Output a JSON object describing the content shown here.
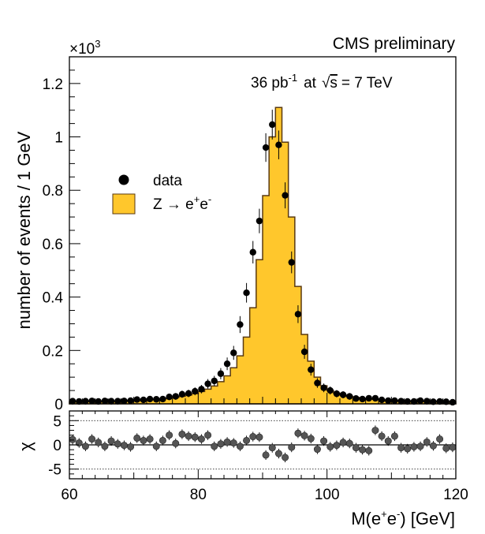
{
  "chart_data": [
    {
      "id": "main",
      "type": "histogram",
      "title": "CMS preliminary",
      "annotation": {
        "lumi": "36 pb",
        "lumi_sup": "-1",
        "at": "at",
        "sqrt": "√",
        "s": "s",
        "energy": "= 7 TeV"
      },
      "scale_label": {
        "prefix": "×10",
        "exp": "3"
      },
      "ylabel": "number of events / 1 GeV",
      "xlim": [
        60,
        120
      ],
      "ylim": [
        0,
        1.3
      ],
      "yticks": [
        "0",
        "0.2",
        "0.4",
        "0.6",
        "0.8",
        "1",
        "1.2"
      ],
      "legend": {
        "position": "upper-left",
        "entries": [
          {
            "label": "data",
            "marker": "dot"
          },
          {
            "label": "Z → e",
            "sup1": "+",
            "rest": "e",
            "sup2": "-",
            "marker": "box"
          }
        ]
      },
      "bin_edges_start": 60,
      "bin_width": 1,
      "mc_values": [
        0.008,
        0.008,
        0.008,
        0.009,
        0.009,
        0.009,
        0.01,
        0.01,
        0.011,
        0.012,
        0.013,
        0.014,
        0.016,
        0.017,
        0.019,
        0.021,
        0.024,
        0.028,
        0.033,
        0.038,
        0.046,
        0.055,
        0.067,
        0.083,
        0.105,
        0.135,
        0.18,
        0.25,
        0.36,
        0.54,
        0.78,
        1.0,
        1.11,
        0.98,
        0.7,
        0.44,
        0.26,
        0.16,
        0.1,
        0.068,
        0.05,
        0.04,
        0.033,
        0.028,
        0.024,
        0.021,
        0.019,
        0.017,
        0.015,
        0.014,
        0.013,
        0.012,
        0.011,
        0.01,
        0.01,
        0.009,
        0.009,
        0.009,
        0.008,
        0.008
      ],
      "data_values": [
        0.01,
        0.009,
        0.01,
        0.011,
        0.009,
        0.011,
        0.01,
        0.01,
        0.011,
        0.012,
        0.016,
        0.015,
        0.018,
        0.017,
        0.018,
        0.026,
        0.028,
        0.036,
        0.039,
        0.047,
        0.055,
        0.075,
        0.086,
        0.113,
        0.15,
        0.191,
        0.297,
        0.416,
        0.568,
        0.685,
        0.96,
        1.046,
        0.97,
        0.781,
        0.53,
        0.336,
        0.195,
        0.128,
        0.078,
        0.06,
        0.05,
        0.038,
        0.034,
        0.028,
        0.02,
        0.018,
        0.021,
        0.021,
        0.015,
        0.012,
        0.012,
        0.01,
        0.009,
        0.009,
        0.012,
        0.01,
        0.008,
        0.009,
        0.008,
        0.006
      ],
      "fill_color": "#FFC72C",
      "line_color": "#5a3a10"
    },
    {
      "id": "residual",
      "type": "scatter",
      "ylabel": "χ",
      "xlabel": {
        "pre": "M(e",
        "sup1": "+",
        "mid": "e",
        "sup2": "-",
        "post": ") [GeV]"
      },
      "xlim": [
        60,
        120
      ],
      "ylim": [
        -7,
        7
      ],
      "xticks": [
        "60",
        "80",
        "100",
        "120"
      ],
      "yticks": [
        "-5",
        "0",
        "5"
      ],
      "reference_lines": [
        -5,
        0,
        5
      ],
      "x_start": 60.5,
      "x_step": 1,
      "values": [
        1.1,
        0.4,
        -0.3,
        1.2,
        0.5,
        -0.3,
        0.8,
        0.2,
        -0.1,
        -0.4,
        1.4,
        0.9,
        1.2,
        -0.3,
        0.9,
        2.0,
        0.3,
        2.2,
        1.8,
        1.6,
        1.2,
        2.0,
        -0.3,
        0.2,
        0.6,
        0.4,
        -0.3,
        0.9,
        1.7,
        1.6,
        -2.1,
        -0.6,
        -1.8,
        -2.6,
        -0.5,
        2.4,
        1.9,
        1.3,
        -0.9,
        0.8,
        -0.4,
        -0.1,
        0.5,
        0.3,
        -0.6,
        -1.0,
        -1.2,
        3.0,
        1.8,
        0.8,
        1.8,
        -0.6,
        -0.8,
        -0.4,
        -0.3,
        0.6,
        -0.2,
        1.2,
        -0.7,
        -0.5
      ],
      "point_color": "#555555"
    }
  ]
}
